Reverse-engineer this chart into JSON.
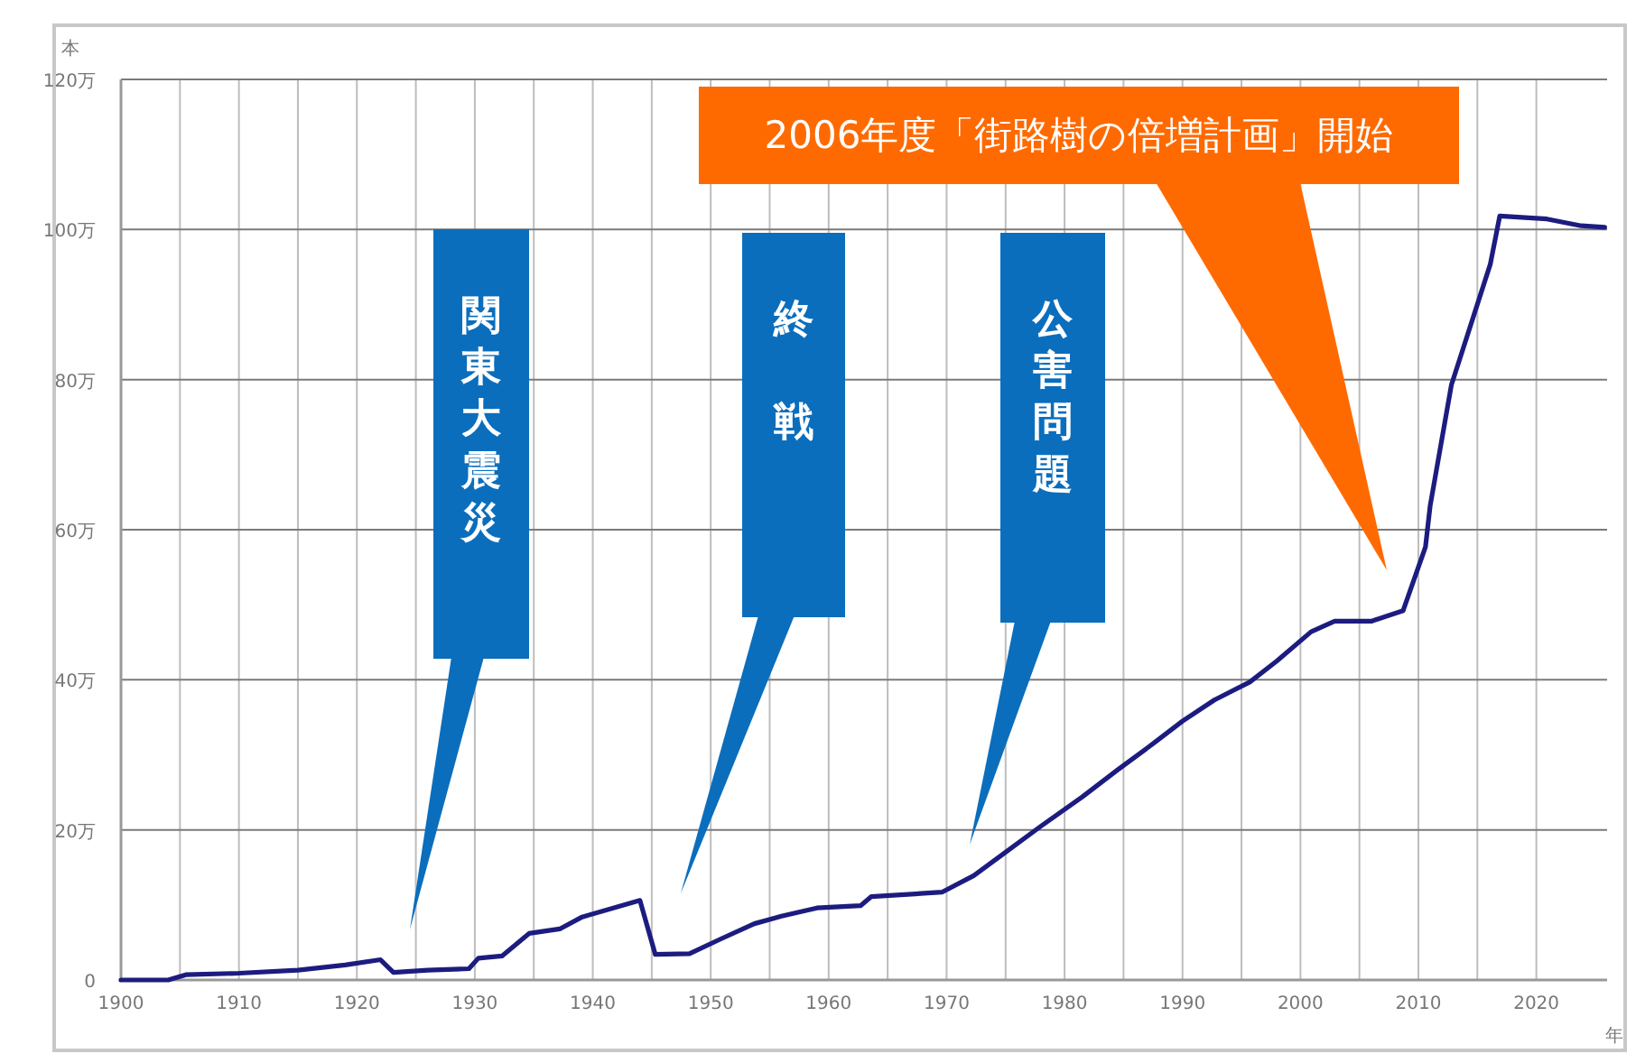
{
  "chart_data": {
    "type": "line",
    "ylabel": "本",
    "xlabel": "年",
    "xlim": [
      1900,
      2026
    ],
    "ylim": [
      0,
      120
    ],
    "xticks": [
      1900,
      {
        "value": 1905,
        "label": null
      },
      1910,
      {
        "value": 1915,
        "label": null
      },
      1920,
      {
        "value": 1925,
        "label": null
      },
      1930,
      {
        "value": 1935,
        "label": null
      },
      1940,
      {
        "value": 1945,
        "label": null
      },
      1950,
      {
        "value": 1955,
        "label": null
      },
      1960,
      {
        "value": 1965,
        "label": null
      },
      1970,
      {
        "value": 1975,
        "label": null
      },
      1980,
      {
        "value": 1985,
        "label": null
      },
      1990,
      {
        "value": 1995,
        "label": null
      },
      2000,
      {
        "value": 2005,
        "label": null
      },
      2010,
      {
        "value": 2015,
        "label": null
      },
      2020
    ],
    "yticks": [
      0,
      {
        "value": 20,
        "label": "20万"
      },
      {
        "value": 40,
        "label": "40万"
      },
      {
        "value": 60,
        "label": "60万"
      },
      {
        "value": 80,
        "label": "80万"
      },
      {
        "value": 100,
        "label": "100万"
      },
      {
        "value": 120,
        "label": "120万"
      }
    ],
    "grid": true,
    "marker": "none",
    "line_style": "solid",
    "series": [
      {
        "color": "#1c1c80",
        "x": [
          1900,
          1904,
          1905.5,
          1910,
          1915,
          1919,
          1922,
          1923.1,
          1926,
          1929.5,
          1930.3,
          1932.3,
          1934.6,
          1937.2,
          1939.1,
          1944,
          1945.3,
          1948.2,
          1950.9,
          1953.7,
          1956,
          1959,
          1962.7,
          1963.6,
          1969.6,
          1972.3,
          1974.9,
          1978,
          1981.5,
          1984.5,
          1987.6,
          1990,
          1992.7,
          1995.7,
          1998,
          2000.9,
          2002.9,
          2006,
          2008.7,
          2010.6,
          2011,
          2012.8,
          2016.1,
          2016.9,
          2020.9,
          2023.8,
          2025.8
        ],
        "values": [
          0,
          0,
          0.7,
          0.9,
          1.3,
          2.0,
          2.7,
          1.0,
          1.3,
          1.5,
          2.9,
          3.2,
          6.2,
          6.8,
          8.4,
          10.6,
          3.4,
          3.5,
          5.5,
          7.5,
          8.5,
          9.6,
          9.9,
          11.1,
          11.7,
          13.9,
          16.9,
          20.5,
          24.4,
          28.0,
          31.6,
          34.5,
          37.3,
          39.7,
          42.5,
          46.4,
          47.8,
          47.8,
          49.2,
          57.7,
          63.2,
          79.3,
          95.4,
          101.8,
          101.4,
          100.5,
          100.3
        ]
      }
    ],
    "annotations": [
      "関東大震災",
      "終戦",
      "公害問題",
      "2006年度「街路樹の倍増計画」開始"
    ]
  }
}
